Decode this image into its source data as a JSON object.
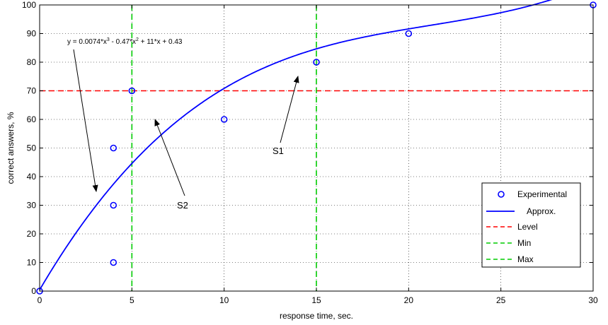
{
  "chart_data": {
    "type": "scatter",
    "xlabel": "response time, sec.",
    "ylabel": "correct answers, %",
    "xlim": [
      0,
      30
    ],
    "ylim": [
      0,
      100
    ],
    "xticks": [
      0,
      5,
      10,
      15,
      20,
      25,
      30
    ],
    "yticks": [
      0,
      10,
      20,
      30,
      40,
      50,
      60,
      70,
      80,
      90,
      100
    ],
    "grid": "dotted",
    "legend_position": "bottom-right",
    "series": [
      {
        "name": "Experimental",
        "kind": "markers",
        "color": "#0000ff",
        "x": [
          0,
          4,
          4,
          4,
          5,
          10,
          15,
          20,
          30
        ],
        "y": [
          0,
          10,
          30,
          50,
          70,
          60,
          80,
          90,
          100
        ]
      },
      {
        "name": "Approx.",
        "kind": "line",
        "color": "#0000ff",
        "coefficients": [
          0.0074,
          -0.47,
          11,
          0.43
        ]
      },
      {
        "name": "Level",
        "kind": "hline",
        "color": "#ff0000",
        "y": 70
      },
      {
        "name": "Min",
        "kind": "vline",
        "color": "#00cc00",
        "x": 5
      },
      {
        "name": "Max",
        "kind": "vline",
        "color": "#00cc00",
        "x": 15
      }
    ],
    "annotations": [
      {
        "id": "equation",
        "text": "y = 0.0074*x^3 - 0.47*x^2 + 11*x + 0.43"
      },
      {
        "id": "s1",
        "text": "S1"
      },
      {
        "id": "s2",
        "text": "S2"
      }
    ]
  }
}
